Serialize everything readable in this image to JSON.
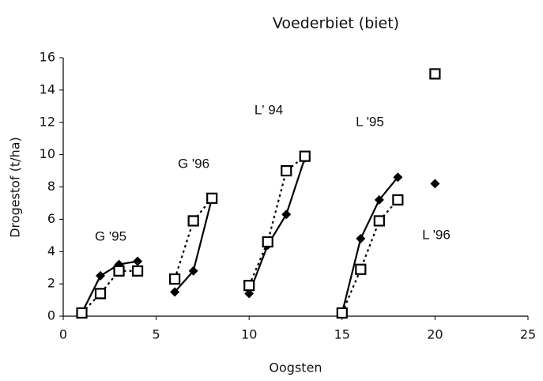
{
  "chart_data": {
    "type": "scatter",
    "title": "Voederbiet (biet)",
    "x_label": "Oogsten",
    "y_label": "Drogestof (t/ha)",
    "x": [
      1,
      2,
      3,
      4,
      5,
      6,
      7,
      8,
      9,
      10,
      11,
      12,
      13,
      14,
      15,
      16,
      17,
      18,
      19,
      20
    ],
    "series": [
      {
        "color": "#000000",
        "marker": "diamond",
        "line": "solid",
        "values": [
          0.2,
          2.5,
          3.2,
          3.4,
          null,
          1.5,
          2.8,
          7.3,
          null,
          1.4,
          4.4,
          6.3,
          9.8,
          null,
          0.2,
          4.8,
          7.2,
          8.6,
          null,
          8.2
        ]
      },
      {
        "color": "#000000",
        "marker": "square",
        "line": "dotted",
        "values": [
          0.2,
          1.4,
          2.8,
          2.8,
          null,
          2.3,
          5.9,
          7.3,
          null,
          1.9,
          4.6,
          9.0,
          9.9,
          null,
          0.2,
          2.9,
          5.9,
          7.2,
          null,
          15
        ]
      }
    ],
    "annotations": [
      "G '95",
      "G '96",
      "L' 94",
      "L '95",
      "L '96"
    ],
    "xlim": [
      0,
      25
    ],
    "xticks": [
      0,
      5,
      10,
      15,
      20,
      25
    ],
    "ylim": [
      0,
      16
    ],
    "yticks": [
      0,
      2,
      4,
      6,
      8,
      10,
      12,
      14,
      16
    ],
    "grid": false
  }
}
